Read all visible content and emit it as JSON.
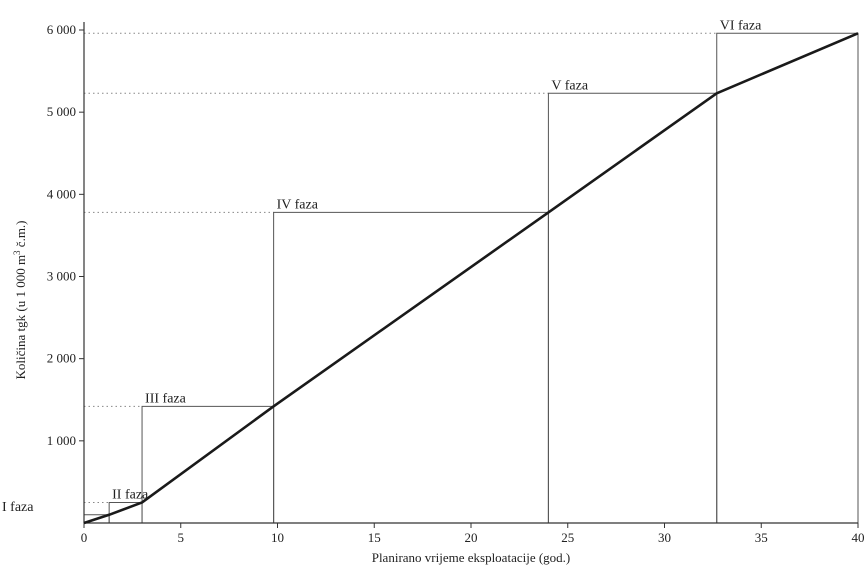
{
  "chart_data": {
    "type": "line",
    "xlabel": "Planirano vrijeme eksploatacije (god.)",
    "ylabel_parts": [
      "Količina tgk (u 1 000 m",
      "3",
      " č.m.)"
    ],
    "xlim": [
      0,
      40
    ],
    "ylim": [
      0,
      6000
    ],
    "x_ticks": [
      0,
      5,
      10,
      15,
      20,
      25,
      30,
      35,
      40
    ],
    "x_tick_labels": [
      "0",
      "5",
      "10",
      "15",
      "20",
      "25",
      "30",
      "35",
      "40"
    ],
    "y_ticks": [
      1000,
      2000,
      3000,
      4000,
      5000,
      6000
    ],
    "y_tick_labels": [
      "1 000",
      "2 000",
      "3 000",
      "4 000",
      "5 000",
      "6 000"
    ],
    "series": [
      {
        "x": [
          0,
          1.3,
          3.0,
          9.8,
          24.0,
          32.7,
          40.0
        ],
        "y": [
          0,
          100,
          250,
          1420,
          3780,
          5230,
          5960
        ]
      }
    ],
    "phases": [
      {
        "label": "I faza",
        "x_start": 0,
        "x_end": 1.3,
        "level": 100
      },
      {
        "label": "II faza",
        "x_start": 1.3,
        "x_end": 3.0,
        "level": 250
      },
      {
        "label": "III faza",
        "x_start": 3.0,
        "x_end": 9.8,
        "level": 1420
      },
      {
        "label": "IV faza",
        "x_start": 9.8,
        "x_end": 24.0,
        "level": 3780
      },
      {
        "label": "V faza",
        "x_start": 24.0,
        "x_end": 32.7,
        "level": 5230
      },
      {
        "label": "VI faza",
        "x_start": 32.7,
        "x_end": 40.0,
        "level": 5960
      }
    ],
    "grid": false,
    "colors": {
      "line": "#1a1a1a",
      "axis": "#333333",
      "phase_box": "#555555",
      "dotted": "#888888"
    }
  }
}
